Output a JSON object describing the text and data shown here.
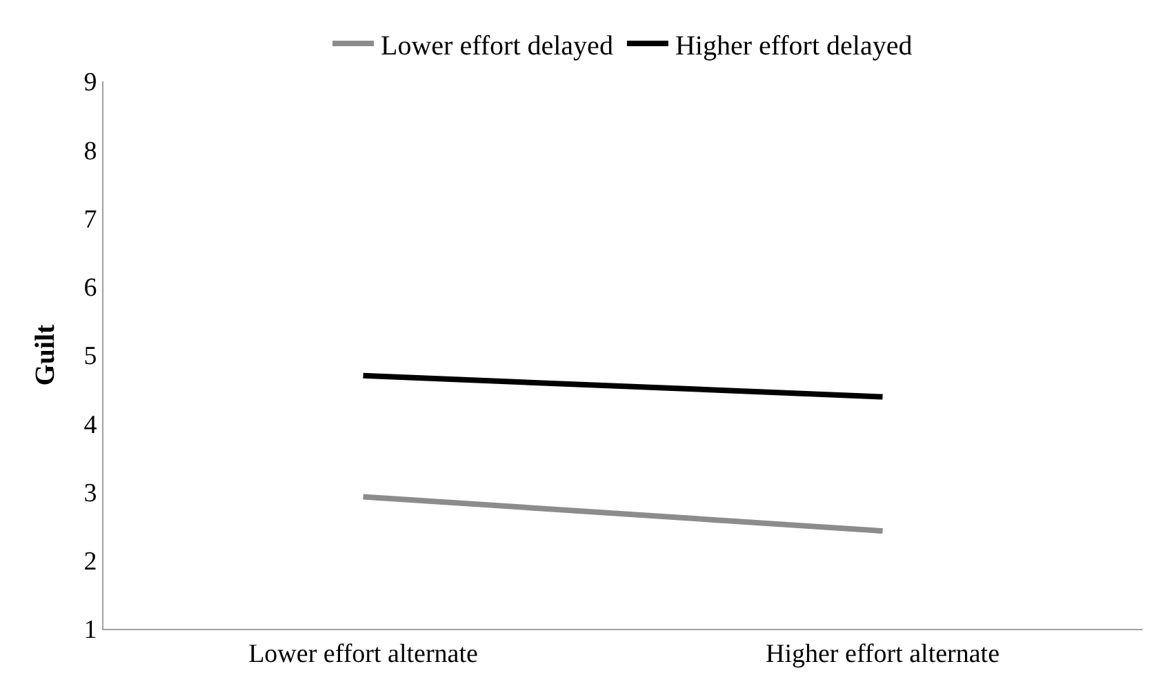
{
  "chart_data": {
    "type": "line",
    "ylabel": "Guilt",
    "categories": [
      "Lower effort alternate",
      "Higher effort alternate"
    ],
    "series": [
      {
        "name": "Lower effort delayed",
        "color": "#8c8c8c",
        "values": [
          2.93,
          2.43
        ]
      },
      {
        "name": "Higher effort delayed",
        "color": "#000000",
        "values": [
          4.7,
          4.39
        ]
      }
    ],
    "ylim": [
      1,
      9
    ],
    "yticks": [
      1,
      2,
      3,
      4,
      5,
      6,
      7,
      8,
      9
    ],
    "legend": "top",
    "marker": "none",
    "line_style": "solid"
  }
}
